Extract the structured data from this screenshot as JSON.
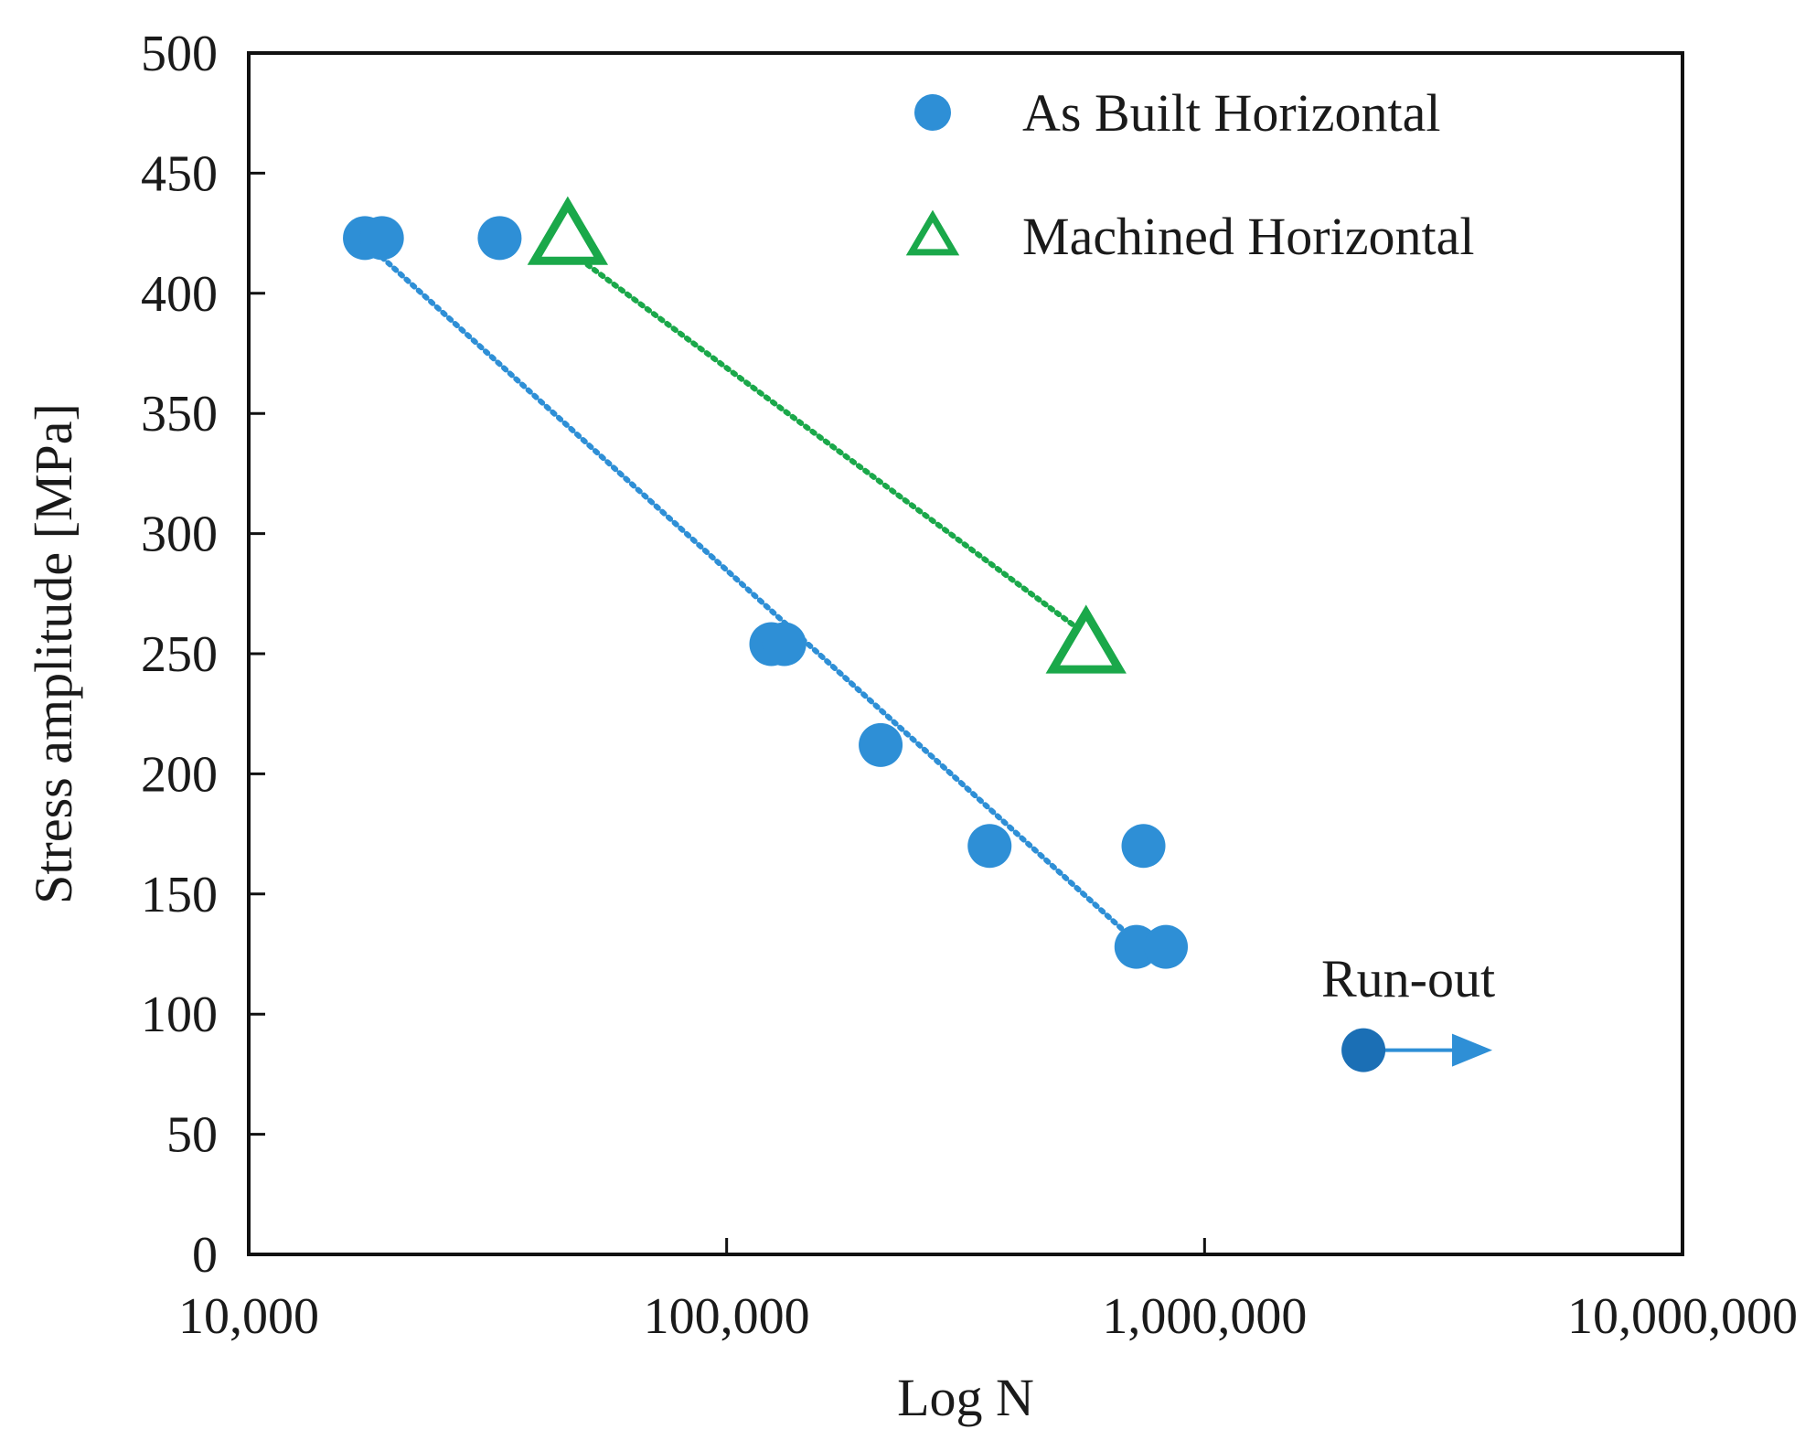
{
  "chart_data": {
    "type": "scatter",
    "title": "",
    "xlabel": "Log N",
    "ylabel": "Stress amplitude [MPa]",
    "x_scale": "log",
    "xlim": [
      10000,
      10000000
    ],
    "ylim": [
      0,
      500
    ],
    "x_ticks": [
      10000,
      100000,
      1000000,
      10000000
    ],
    "x_tick_labels": [
      "10,000",
      "100,000",
      "1,000,000",
      "10,000,000"
    ],
    "y_ticks": [
      0,
      50,
      100,
      150,
      200,
      250,
      300,
      350,
      400,
      450,
      500
    ],
    "y_tick_labels": [
      "0",
      "50",
      "100",
      "150",
      "200",
      "250",
      "300",
      "350",
      "400",
      "450",
      "500"
    ],
    "grid": false,
    "legend_position": "top-right",
    "series": [
      {
        "name": "As Built Horizontal",
        "marker": "circle",
        "color": "#2e8fd6",
        "points": [
          {
            "x": 17500,
            "y": 423
          },
          {
            "x": 19000,
            "y": 423
          },
          {
            "x": 33500,
            "y": 423
          },
          {
            "x": 124000,
            "y": 254
          },
          {
            "x": 132000,
            "y": 254
          },
          {
            "x": 210000,
            "y": 212
          },
          {
            "x": 355000,
            "y": 170
          },
          {
            "x": 745000,
            "y": 170
          },
          {
            "x": 720000,
            "y": 128
          },
          {
            "x": 830000,
            "y": 128
          }
        ],
        "trendline": {
          "style": "dotted",
          "from": {
            "x": 19000,
            "y": 415
          },
          "to": {
            "x": 720000,
            "y": 130
          }
        }
      },
      {
        "name": "Machined Horizontal",
        "marker": "triangle-open",
        "color": "#1aa84a",
        "points": [
          {
            "x": 46500,
            "y": 423
          },
          {
            "x": 565000,
            "y": 253
          }
        ],
        "trendline": {
          "style": "dotted",
          "from": {
            "x": 46500,
            "y": 418
          },
          "to": {
            "x": 565000,
            "y": 258
          }
        }
      }
    ],
    "runout": {
      "label": "Run-out",
      "point": {
        "x": 2150000,
        "y": 85
      },
      "arrow_to_x": 4000000,
      "color": "#1b6fb5"
    }
  }
}
